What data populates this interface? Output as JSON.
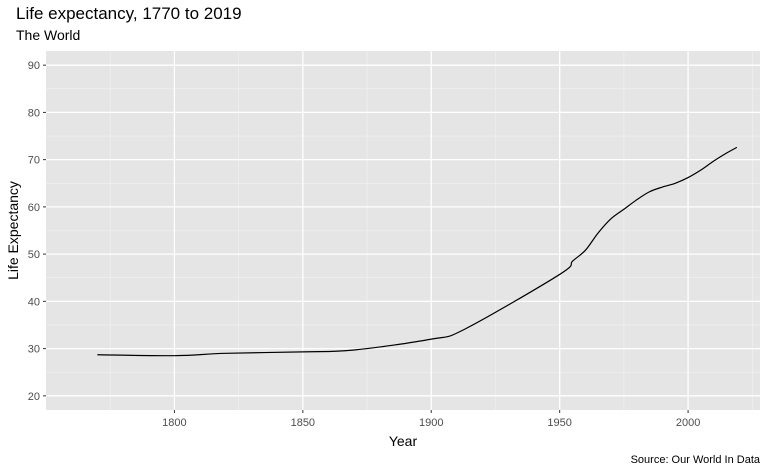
{
  "title": "Life expectancy, 1770 to 2019",
  "subtitle": "The World",
  "caption": "Source: Our World In Data",
  "chart_data": {
    "type": "line",
    "title": "Life expectancy, 1770 to 2019",
    "subtitle": "The World",
    "xlabel": "Year",
    "ylabel": "Life Expectancy",
    "xlim": [
      1750,
      2028
    ],
    "ylim": [
      17,
      93
    ],
    "xticks": [
      1800,
      1850,
      1900,
      1950,
      2000
    ],
    "yticks": [
      20,
      30,
      40,
      50,
      60,
      70,
      80,
      90
    ],
    "grid": true,
    "panel_color": "#e5e5e5",
    "line_color": "#000000",
    "x": [
      1770,
      1800,
      1820,
      1850,
      1870,
      1900,
      1913,
      1950,
      1955,
      1960,
      1965,
      1970,
      1975,
      1980,
      1985,
      1990,
      1995,
      2000,
      2005,
      2010,
      2015,
      2019
    ],
    "y": [
      28.7,
      28.5,
      29.0,
      29.3,
      29.7,
      32.0,
      34.1,
      45.7,
      48.5,
      50.8,
      54.5,
      57.5,
      59.5,
      61.5,
      63.2,
      64.2,
      65.0,
      66.2,
      67.8,
      69.7,
      71.4,
      72.6
    ]
  }
}
